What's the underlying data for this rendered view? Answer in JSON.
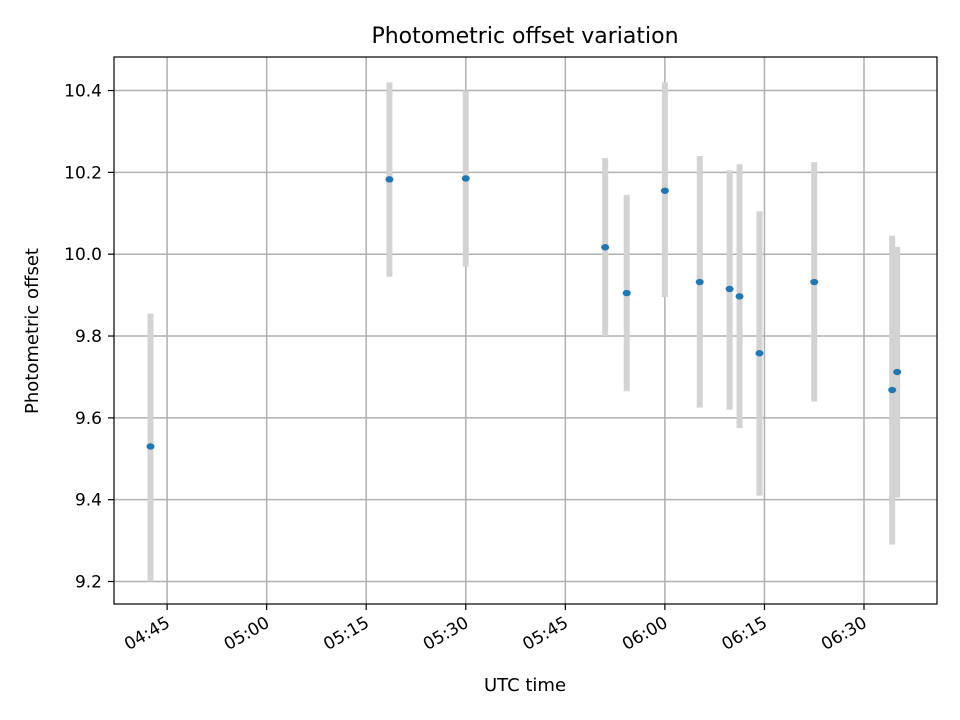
{
  "chart_data": {
    "type": "scatter",
    "title": "Photometric offset variation",
    "xlabel": "UTC time",
    "ylabel": "Photometric offset",
    "x_unit": "UTC time (HH:MM)",
    "xlim": [
      "04:37",
      "06:41"
    ],
    "ylim": [
      9.145,
      10.482
    ],
    "xticks": [
      "04:45",
      "05:00",
      "05:15",
      "05:30",
      "05:45",
      "06:00",
      "06:15",
      "06:30"
    ],
    "yticks": [
      "9.2",
      "9.4",
      "9.6",
      "9.8",
      "10.0",
      "10.2",
      "10.4"
    ],
    "grid": true,
    "legend": "none",
    "colors": {
      "marker": "#1f77b4",
      "errorbar": "#d3d3d3",
      "grid": "#b0b0b0"
    },
    "points": [
      {
        "x": "04:42:30",
        "y": 9.53,
        "err_low": 9.2,
        "err_high": 9.855
      },
      {
        "x": "05:18:30",
        "y": 10.183,
        "err_low": 9.945,
        "err_high": 10.42
      },
      {
        "x": "05:30:00",
        "y": 10.185,
        "err_low": 9.97,
        "err_high": 10.4
      },
      {
        "x": "05:51:00",
        "y": 10.017,
        "err_low": 9.8,
        "err_high": 10.235
      },
      {
        "x": "05:54:15",
        "y": 9.905,
        "err_low": 9.665,
        "err_high": 10.145
      },
      {
        "x": "06:00:00",
        "y": 10.155,
        "err_low": 9.895,
        "err_high": 10.42
      },
      {
        "x": "06:05:15",
        "y": 9.932,
        "err_low": 9.625,
        "err_high": 10.24
      },
      {
        "x": "06:09:45",
        "y": 9.915,
        "err_low": 9.62,
        "err_high": 10.205
      },
      {
        "x": "06:11:15",
        "y": 9.897,
        "err_low": 9.575,
        "err_high": 10.22
      },
      {
        "x": "06:14:15",
        "y": 9.758,
        "err_low": 9.41,
        "err_high": 10.105
      },
      {
        "x": "06:22:30",
        "y": 9.932,
        "err_low": 9.64,
        "err_high": 10.225
      },
      {
        "x": "06:34:15",
        "y": 9.668,
        "err_low": 9.29,
        "err_high": 10.045
      },
      {
        "x": "06:35:00",
        "y": 9.712,
        "err_low": 9.405,
        "err_high": 10.018
      }
    ]
  }
}
